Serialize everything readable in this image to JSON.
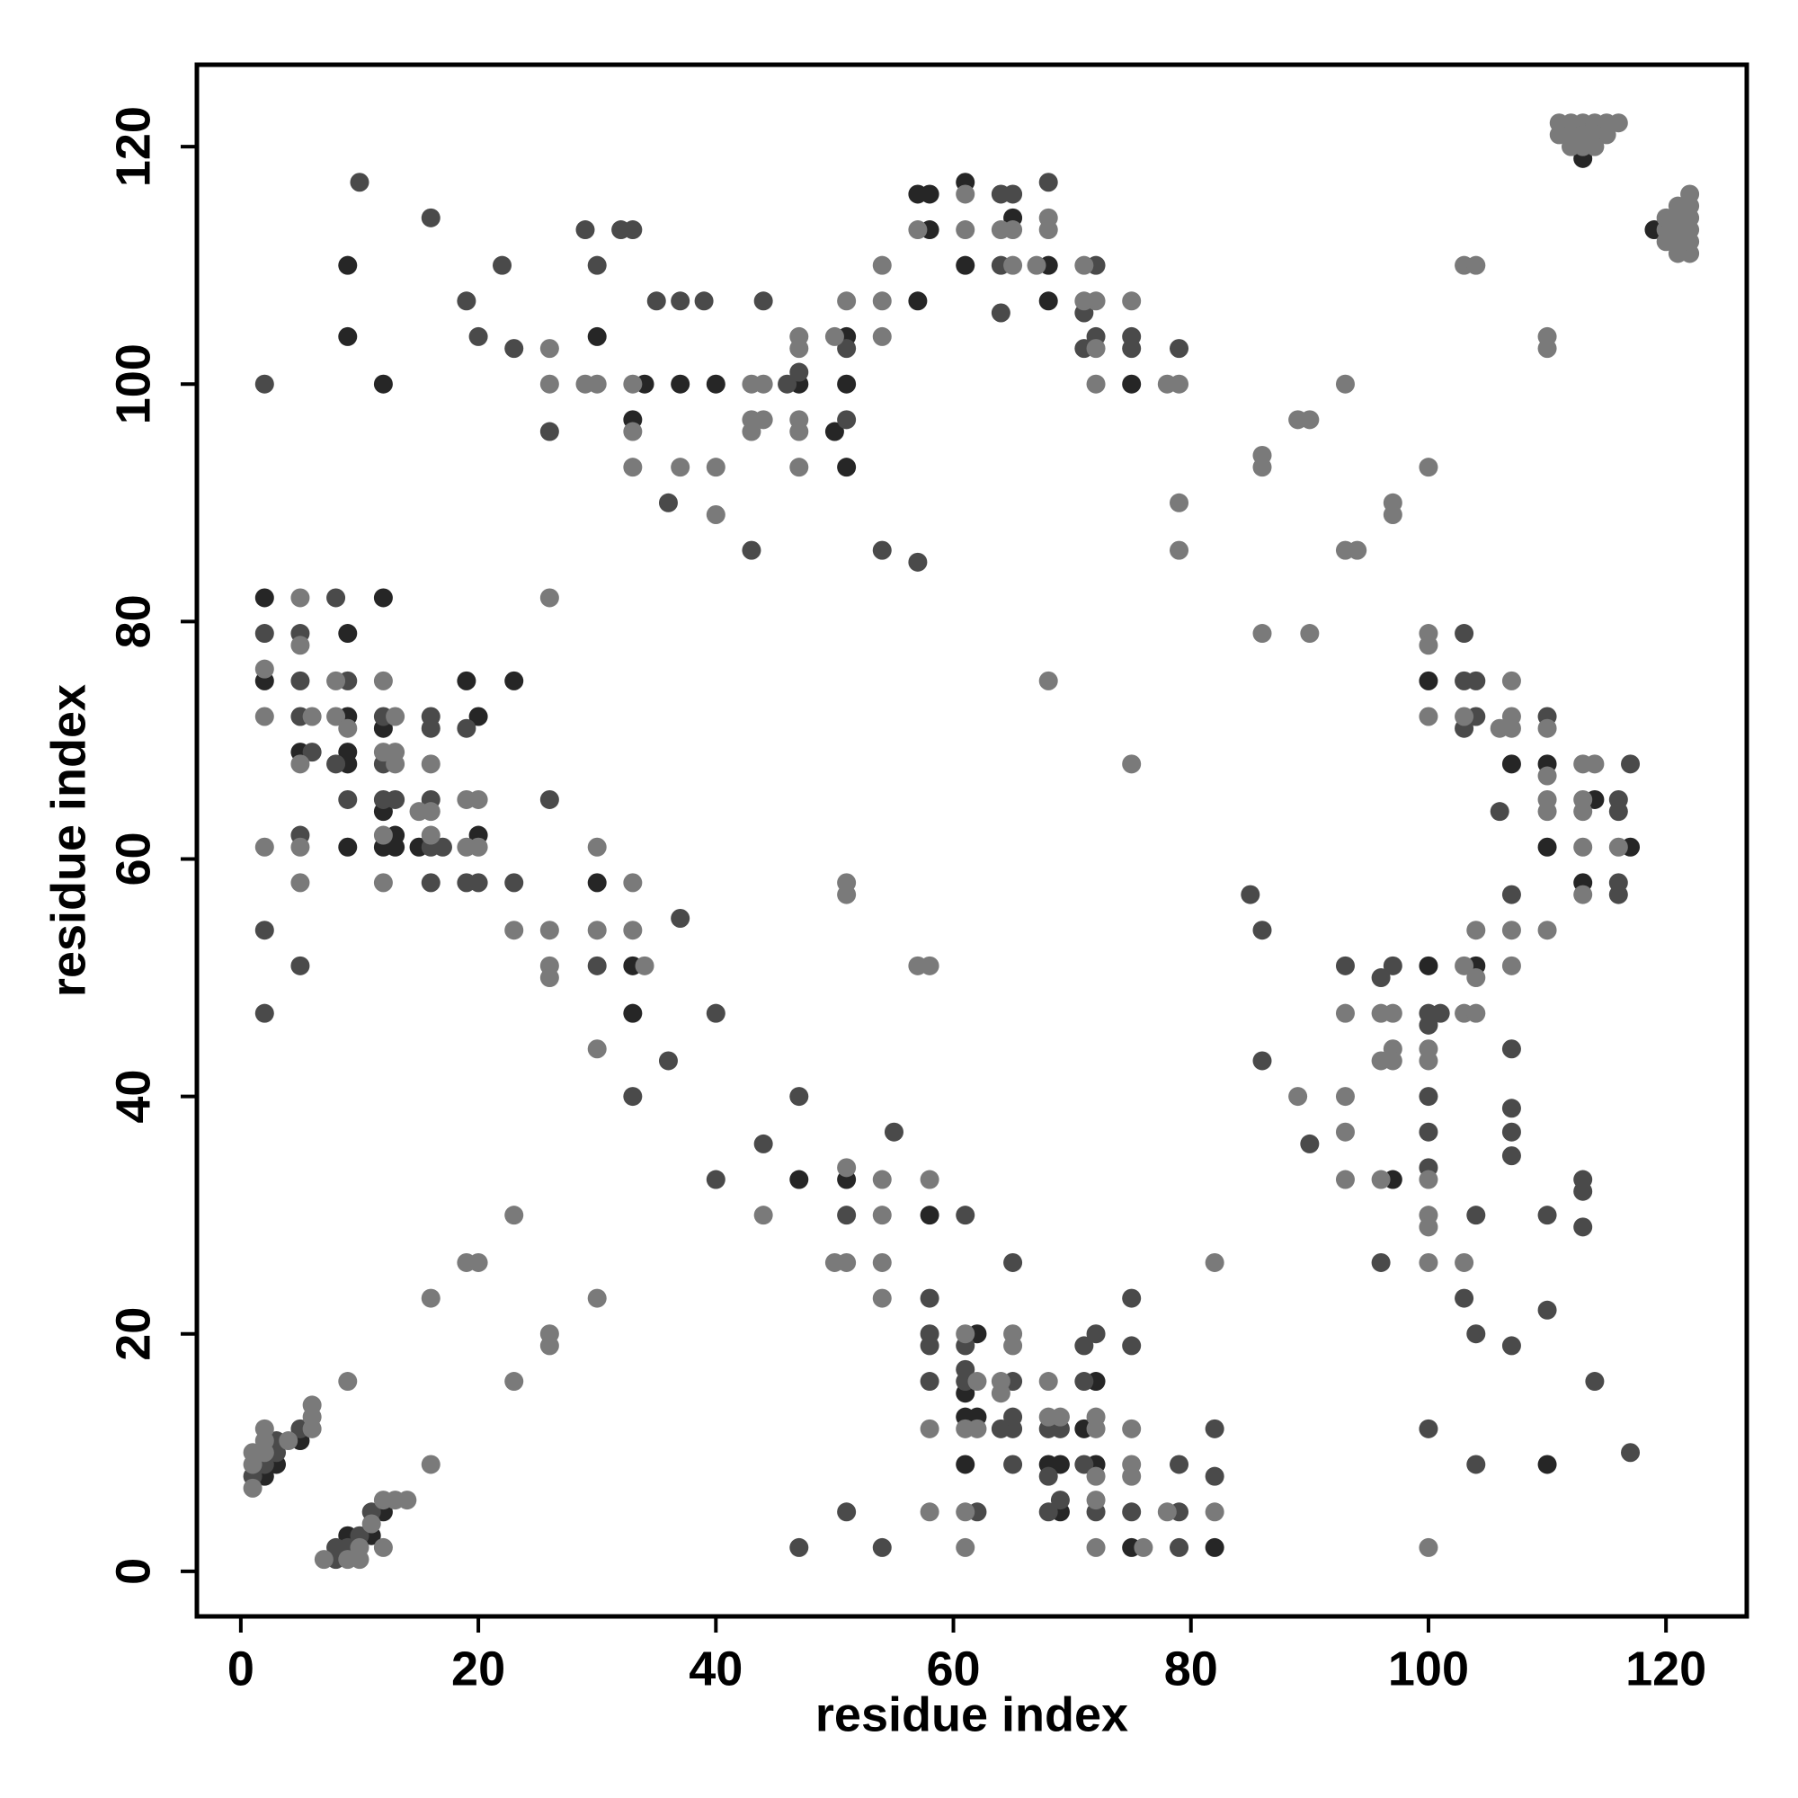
{
  "chart_data": {
    "type": "scatter",
    "xlabel": "residue index",
    "ylabel": "residue index",
    "xlim": [
      -3.7,
      126.8
    ],
    "ylim": [
      -3.8,
      126.9
    ],
    "xticks": [
      0,
      20,
      40,
      60,
      80,
      100,
      120
    ],
    "yticks": [
      0,
      20,
      40,
      60,
      80,
      100,
      120
    ],
    "grid": false,
    "series": [
      {
        "color": "#262626",
        "x": [
          9,
          9,
          12,
          30,
          34,
          33,
          37,
          40,
          47,
          51,
          51,
          50,
          51,
          57,
          58,
          58,
          57,
          61,
          61,
          65,
          68,
          68,
          75,
          2,
          12,
          9,
          2,
          5,
          9,
          9,
          9,
          9,
          12,
          12,
          13,
          12,
          13,
          15,
          19,
          20,
          20,
          23,
          30,
          33,
          33,
          47,
          51,
          58,
          62,
          61,
          61,
          62,
          61,
          68,
          69,
          69,
          72,
          71,
          72,
          75,
          82,
          2,
          3,
          5,
          9,
          11,
          12,
          100,
          107,
          110,
          110,
          114,
          117,
          113,
          104,
          100,
          97,
          110,
          113,
          119
        ],
        "y": [
          110,
          104,
          100,
          104,
          100,
          97,
          100,
          100,
          100,
          104,
          100,
          96,
          93,
          116,
          116,
          113,
          107,
          117,
          110,
          114,
          110,
          107,
          100,
          82,
          82,
          79,
          75,
          69,
          72,
          69,
          68,
          61,
          71,
          64,
          62,
          61,
          61,
          61,
          75,
          72,
          62,
          75,
          58,
          51,
          47,
          33,
          33,
          30,
          20,
          15,
          13,
          13,
          9,
          9,
          9,
          5,
          16,
          12,
          9,
          2,
          2,
          8,
          9,
          11,
          3,
          3,
          5,
          75,
          68,
          68,
          61,
          65,
          61,
          58,
          51,
          51,
          33,
          9,
          119,
          113
        ]
      },
      {
        "color": "#4a4a4a",
        "x": [
          10,
          2,
          16,
          19,
          20,
          22,
          23,
          26,
          29,
          30,
          32,
          33,
          35,
          37,
          39,
          36,
          43,
          44,
          46,
          47,
          51,
          51,
          54,
          57,
          64,
          65,
          64,
          64,
          68,
          72,
          71,
          71,
          72,
          75,
          75,
          79,
          8,
          2,
          5,
          5,
          5,
          6,
          9,
          8,
          9,
          12,
          12,
          12,
          13,
          16,
          16,
          16,
          16,
          17,
          16,
          19,
          19,
          20,
          23,
          5,
          2,
          5,
          2,
          26,
          30,
          33,
          37,
          36,
          40,
          44,
          47,
          40,
          51,
          55,
          61,
          65,
          58,
          58,
          58,
          58,
          61,
          61,
          61,
          62,
          65,
          64,
          65,
          65,
          65,
          68,
          69,
          68,
          69,
          68,
          71,
          72,
          71,
          71,
          72,
          75,
          75,
          75,
          79,
          79,
          79,
          82,
          82,
          47,
          51,
          54,
          1,
          2,
          3,
          3,
          5,
          8,
          8,
          9,
          10,
          11,
          103,
          103,
          104,
          104,
          103,
          110,
          106,
          117,
          116,
          116,
          116,
          116,
          107,
          100,
          101,
          100,
          97,
          96,
          93,
          100,
          100,
          100,
          96,
          103,
          104,
          104,
          107,
          107,
          107,
          107,
          107,
          110,
          110,
          113,
          113,
          113,
          114,
          117,
          104,
          100,
          90,
          86,
          86,
          85
        ],
        "y": [
          117,
          100,
          114,
          107,
          104,
          110,
          103,
          96,
          113,
          110,
          113,
          113,
          107,
          107,
          107,
          90,
          86,
          107,
          100,
          101,
          103,
          97,
          86,
          85,
          116,
          116,
          110,
          106,
          117,
          110,
          106,
          103,
          104,
          104,
          103,
          103,
          82,
          79,
          79,
          75,
          72,
          69,
          75,
          68,
          65,
          72,
          68,
          65,
          65,
          72,
          71,
          65,
          61,
          61,
          58,
          71,
          58,
          58,
          58,
          62,
          54,
          51,
          47,
          65,
          51,
          40,
          55,
          43,
          47,
          36,
          40,
          33,
          30,
          37,
          30,
          26,
          23,
          20,
          19,
          16,
          19,
          17,
          16,
          5,
          16,
          12,
          12,
          13,
          9,
          12,
          12,
          8,
          6,
          5,
          19,
          20,
          16,
          9,
          5,
          23,
          19,
          5,
          5,
          9,
          2,
          12,
          8,
          2,
          5,
          2,
          8,
          9,
          10,
          11,
          12,
          1,
          2,
          2,
          3,
          5,
          79,
          75,
          75,
          72,
          71,
          72,
          64,
          68,
          65,
          64,
          58,
          57,
          57,
          47,
          47,
          46,
          51,
          50,
          51,
          40,
          37,
          34,
          26,
          23,
          30,
          20,
          44,
          39,
          37,
          35,
          19,
          30,
          22,
          33,
          32,
          29,
          16,
          10,
          9,
          12,
          36,
          43,
          54,
          57
        ]
      },
      {
        "color": "#7a7a7a",
        "x": [
          26,
          26,
          29,
          30,
          33,
          33,
          33,
          37,
          40,
          40,
          43,
          44,
          43,
          44,
          43,
          47,
          47,
          47,
          47,
          47,
          50,
          51,
          54,
          54,
          54,
          57,
          61,
          61,
          64,
          65,
          65,
          67,
          68,
          68,
          71,
          71,
          72,
          72,
          72,
          75,
          78,
          79,
          79,
          79,
          75,
          68,
          5,
          5,
          2,
          2,
          6,
          5,
          8,
          8,
          9,
          12,
          13,
          12,
          13,
          13,
          12,
          12,
          16,
          15,
          16,
          16,
          19,
          20,
          19,
          20,
          23,
          2,
          5,
          5,
          26,
          26,
          26,
          26,
          30,
          30,
          30,
          33,
          33,
          34,
          44,
          50,
          51,
          51,
          54,
          54,
          54,
          54,
          58,
          57,
          58,
          51,
          51,
          58,
          58,
          61,
          62,
          61,
          62,
          61,
          61,
          64,
          64,
          65,
          65,
          68,
          68,
          69,
          72,
          72,
          72,
          72,
          72,
          75,
          75,
          75,
          76,
          78,
          82,
          82,
          23,
          23,
          19,
          20,
          16,
          9,
          16,
          30,
          26,
          26,
          1,
          1,
          1,
          2,
          2,
          2,
          4,
          6,
          6,
          6,
          7,
          9,
          10,
          10,
          11,
          12,
          12,
          13,
          14,
          100,
          100,
          100,
          103,
          106,
          107,
          107,
          107,
          110,
          110,
          110,
          110,
          113,
          114,
          113,
          113,
          113,
          116,
          113,
          107,
          104,
          110,
          107,
          103,
          104,
          103,
          104,
          100,
          100,
          96,
          97,
          96,
          97,
          97,
          93,
          93,
          93,
          93,
          96,
          100,
          100,
          100,
          100,
          103,
          100,
          89,
          86,
          86,
          86,
          90,
          89,
          90,
          93,
          93,
          94,
          97,
          97,
          100,
          103,
          104,
          110,
          110,
          111,
          112,
          113,
          114,
          115,
          116,
          111,
          112,
          113,
          114,
          115,
          112,
          113,
          114,
          120,
          120,
          120,
          121,
          121,
          121,
          121,
          121,
          122,
          122,
          122,
          122,
          122,
          122
        ],
        "y": [
          103,
          100,
          100,
          100,
          100,
          96,
          93,
          93,
          93,
          89,
          100,
          100,
          97,
          97,
          96,
          104,
          103,
          97,
          96,
          93,
          104,
          107,
          110,
          107,
          104,
          113,
          116,
          113,
          113,
          113,
          110,
          110,
          114,
          113,
          110,
          107,
          107,
          103,
          100,
          107,
          100,
          100,
          90,
          86,
          68,
          75,
          82,
          78,
          76,
          72,
          72,
          68,
          75,
          72,
          71,
          75,
          72,
          69,
          69,
          68,
          62,
          58,
          68,
          64,
          64,
          62,
          65,
          65,
          61,
          61,
          54,
          61,
          61,
          58,
          82,
          54,
          51,
          50,
          61,
          54,
          44,
          58,
          54,
          51,
          30,
          26,
          26,
          34,
          33,
          30,
          26,
          23,
          33,
          51,
          51,
          58,
          57,
          12,
          5,
          20,
          16,
          12,
          12,
          5,
          2,
          16,
          15,
          20,
          19,
          16,
          13,
          13,
          13,
          12,
          8,
          6,
          2,
          12,
          9,
          8,
          2,
          5,
          5,
          26,
          30,
          16,
          26,
          26,
          23,
          16,
          9,
          23,
          20,
          19,
          7,
          9,
          10,
          10,
          11,
          12,
          11,
          12,
          13,
          14,
          1,
          1,
          1,
          2,
          4,
          6,
          2,
          6,
          6,
          79,
          78,
          72,
          72,
          71,
          72,
          75,
          71,
          71,
          67,
          65,
          64,
          68,
          68,
          65,
          64,
          61,
          61,
          57,
          54,
          54,
          54,
          51,
          51,
          50,
          47,
          47,
          44,
          43,
          47,
          47,
          43,
          44,
          43,
          47,
          40,
          37,
          33,
          33,
          33,
          30,
          29,
          26,
          26,
          2,
          40,
          94,
          93,
          79,
          79,
          97,
          97,
          100,
          86,
          86,
          90,
          89,
          93,
          110,
          110,
          104,
          103,
          122,
          122,
          122,
          122,
          122,
          122,
          121,
          121,
          121,
          121,
          121,
          120,
          120,
          120,
          112,
          113,
          114,
          111,
          112,
          113,
          114,
          115,
          111,
          112,
          113,
          114,
          115,
          116
        ]
      }
    ]
  }
}
